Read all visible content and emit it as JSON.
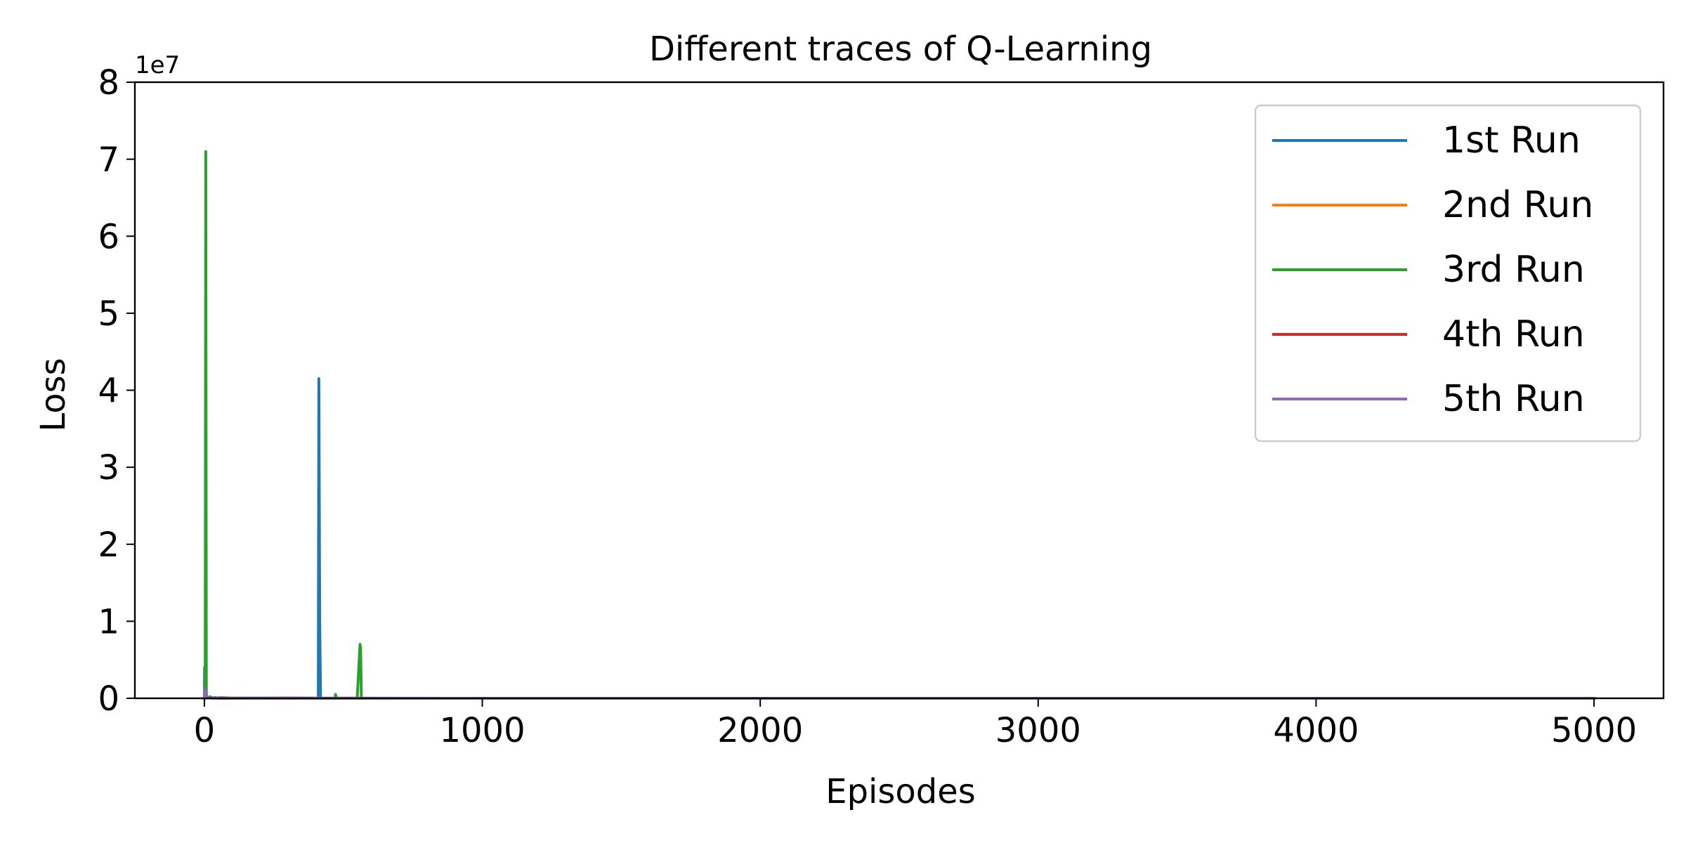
{
  "chart_data": {
    "type": "line",
    "title": "Different traces of Q-Learning",
    "xlabel": "Episodes",
    "ylabel": "Loss",
    "y_offset_label": "1e7",
    "xlim": [
      -250,
      5250
    ],
    "ylim": [
      0,
      80000000
    ],
    "x_ticks": [
      0,
      1000,
      2000,
      3000,
      4000,
      5000
    ],
    "x_tick_labels": [
      "0",
      "1000",
      "2000",
      "3000",
      "4000",
      "5000"
    ],
    "y_ticks": [
      0,
      10000000,
      20000000,
      30000000,
      40000000,
      50000000,
      60000000,
      70000000,
      80000000
    ],
    "y_tick_labels": [
      "0",
      "1",
      "2",
      "3",
      "4",
      "5",
      "6",
      "7",
      "8"
    ],
    "grid": false,
    "legend_position": "top-right",
    "series": [
      {
        "name": "1st Run",
        "color": "#1f77b4",
        "x": [
          0,
          1,
          2,
          3,
          4,
          5,
          10,
          20,
          30,
          40,
          50,
          60,
          100,
          200,
          300,
          400,
          410,
          412,
          415,
          418,
          420,
          425,
          430,
          500,
          600,
          1000,
          2000,
          3000,
          4000,
          5000
        ],
        "y": [
          0,
          4000000,
          800000,
          200000,
          100000,
          50000,
          30000,
          200000,
          50000,
          100000,
          20000,
          30000,
          10000,
          10000,
          50000,
          20000,
          30000,
          41500000,
          10000000,
          200000,
          30000,
          10000,
          5000,
          5000,
          3000,
          2000,
          1000,
          1000,
          1000,
          1000
        ]
      },
      {
        "name": "2nd Run",
        "color": "#ff7f0e",
        "x": [
          0,
          2,
          4,
          8,
          15,
          30,
          60,
          100,
          300,
          1000,
          2000,
          3000,
          4000,
          5000
        ],
        "y": [
          0,
          600000,
          200000,
          100000,
          50000,
          30000,
          20000,
          10000,
          5000,
          3000,
          2000,
          1000,
          1000,
          1000
        ]
      },
      {
        "name": "3rd Run",
        "color": "#2ca02c",
        "x": [
          0,
          3,
          5,
          7,
          9,
          12,
          20,
          40,
          60,
          100,
          200,
          300,
          400,
          470,
          472,
          475,
          480,
          550,
          560,
          562,
          565,
          570,
          600,
          1000,
          2000,
          3000,
          4000,
          5000
        ],
        "y": [
          0,
          300000,
          71000000,
          500000,
          200000,
          100000,
          50000,
          20000,
          10000,
          5000,
          5000,
          3000,
          3000,
          5000,
          500000,
          30000,
          5000,
          5000,
          7000000,
          6500000,
          50000,
          5000,
          3000,
          2000,
          1000,
          1000,
          1000,
          1000
        ]
      },
      {
        "name": "4th Run",
        "color": "#d62728",
        "x": [
          0,
          2,
          4,
          6,
          10,
          20,
          40,
          80,
          150,
          300,
          1000,
          2000,
          3000,
          4000,
          5000
        ],
        "y": [
          0,
          900000,
          400000,
          150000,
          80000,
          40000,
          20000,
          10000,
          5000,
          3000,
          2000,
          1000,
          1000,
          1000,
          1000
        ]
      },
      {
        "name": "5th Run",
        "color": "#9467bd",
        "x": [
          0,
          1,
          3,
          5,
          8,
          12,
          20,
          40,
          60,
          100,
          200,
          320,
          330,
          400,
          1000,
          2000,
          3000,
          4000,
          5000
        ],
        "y": [
          0,
          1300000,
          700000,
          300000,
          150000,
          80000,
          50000,
          30000,
          100000,
          20000,
          10000,
          50000,
          10000,
          5000,
          3000,
          2000,
          1000,
          1000,
          1000
        ]
      }
    ]
  }
}
